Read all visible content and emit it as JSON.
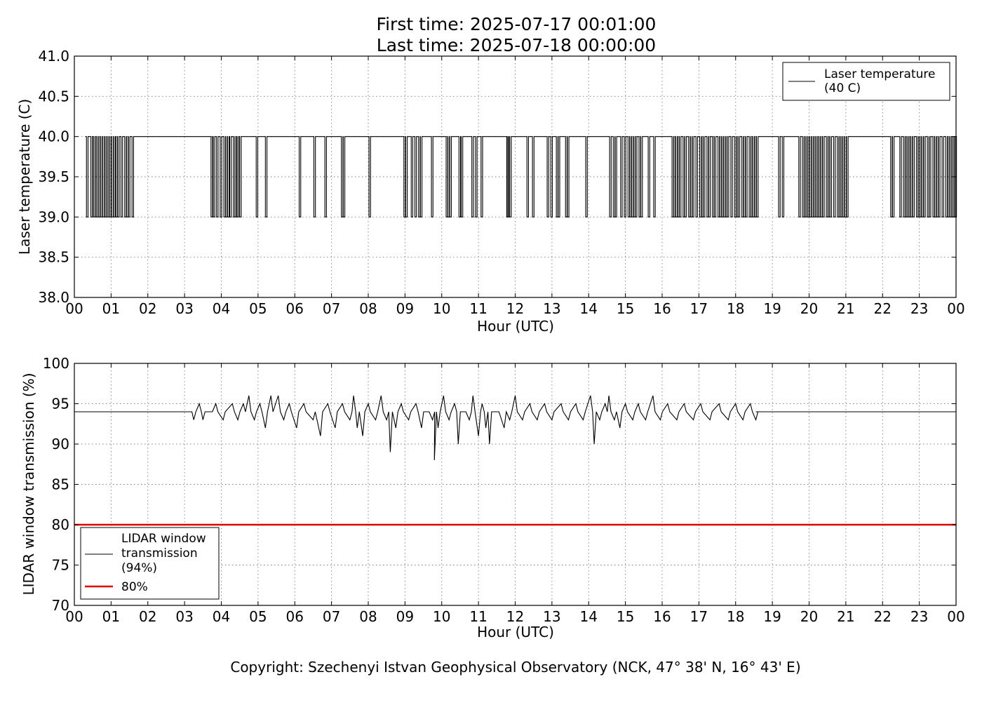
{
  "titles": {
    "first_time": "First time: 2025-07-17 00:01:00",
    "last_time": "Last time: 2025-07-18 00:00:00"
  },
  "copyright": "Copyright: Szechenyi Istvan Geophysical Observatory (NCK, 47° 38' N, 16° 43' E)",
  "chart_data": [
    {
      "type": "line",
      "xlabel": "Hour (UTC)",
      "ylabel": "Laser temperature (C)",
      "xlim": [
        0,
        24
      ],
      "ylim": [
        38.0,
        41.0
      ],
      "grid": true,
      "x_ticks": [
        "00",
        "01",
        "02",
        "03",
        "04",
        "05",
        "06",
        "07",
        "08",
        "09",
        "10",
        "11",
        "12",
        "13",
        "14",
        "15",
        "16",
        "17",
        "18",
        "19",
        "20",
        "21",
        "22",
        "23",
        "00"
      ],
      "y_ticks": [
        "38.0",
        "38.5",
        "39.0",
        "39.5",
        "40.0",
        "40.5",
        "41.0"
      ],
      "legend": {
        "position": "top-right",
        "entries": [
          "Laser temperature\n(40 C)"
        ]
      },
      "series": [
        {
          "name": "Laser temperature\n(40 C)",
          "color": "#000000",
          "baseline": 40.0,
          "low": 39.0,
          "drops": [
            0.33,
            0.45,
            0.52,
            0.57,
            0.62,
            0.67,
            0.72,
            0.77,
            0.82,
            0.87,
            0.92,
            0.97,
            1.02,
            1.07,
            1.13,
            1.18,
            1.27,
            1.37,
            1.42,
            1.47,
            1.57,
            3.72,
            3.78,
            3.87,
            3.97,
            4.07,
            4.12,
            4.17,
            4.23,
            4.33,
            4.37,
            4.43,
            4.5,
            4.95,
            5.2,
            6.12,
            6.52,
            6.82,
            7.27,
            7.32,
            8.02,
            8.97,
            9.02,
            9.17,
            9.27,
            9.37,
            9.42,
            9.72,
            10.12,
            10.17,
            10.22,
            10.47,
            10.53,
            10.82,
            10.92,
            11.07,
            11.77,
            11.8,
            11.85,
            12.32,
            12.47,
            12.87,
            12.97,
            13.12,
            13.17,
            13.37,
            13.42,
            13.92,
            14.57,
            14.67,
            14.72,
            14.87,
            14.97,
            15.07,
            15.12,
            15.17,
            15.22,
            15.27,
            15.37,
            15.42,
            15.62,
            15.77,
            16.27,
            16.32,
            16.37,
            16.42,
            16.47,
            16.57,
            16.62,
            16.72,
            16.77,
            16.82,
            16.92,
            17.02,
            17.07,
            17.12,
            17.22,
            17.27,
            17.37,
            17.42,
            17.52,
            17.57,
            17.62,
            17.67,
            17.72,
            17.77,
            17.87,
            17.97,
            18.02,
            18.07,
            18.17,
            18.22,
            18.27,
            18.37,
            18.42,
            18.47,
            18.52,
            18.57,
            19.17,
            19.27,
            19.72,
            19.82,
            19.87,
            19.92,
            19.97,
            20.02,
            20.07,
            20.12,
            20.17,
            20.22,
            20.27,
            20.32,
            20.37,
            20.47,
            20.52,
            20.57,
            20.67,
            20.77,
            20.82,
            20.87,
            20.92,
            20.97,
            21.02,
            22.22,
            22.27,
            22.47,
            22.57,
            22.62,
            22.67,
            22.72,
            22.77,
            22.82,
            22.92,
            22.97,
            23.02,
            23.07,
            23.12,
            23.22,
            23.27,
            23.37,
            23.42,
            23.47,
            23.52,
            23.62,
            23.72,
            23.77,
            23.82,
            23.87,
            23.92,
            23.97
          ]
        }
      ]
    },
    {
      "type": "line",
      "xlabel": "Hour (UTC)",
      "ylabel": "LIDAR window transmission (%)",
      "xlim": [
        0,
        24
      ],
      "ylim": [
        70,
        100
      ],
      "grid": true,
      "x_ticks": [
        "00",
        "01",
        "02",
        "03",
        "04",
        "05",
        "06",
        "07",
        "08",
        "09",
        "10",
        "11",
        "12",
        "13",
        "14",
        "15",
        "16",
        "17",
        "18",
        "19",
        "20",
        "21",
        "22",
        "23",
        "00"
      ],
      "y_ticks": [
        "70",
        "75",
        "80",
        "85",
        "90",
        "95",
        "100"
      ],
      "legend": {
        "position": "lower-left",
        "entries": [
          "LIDAR window\ntransmission\n(94%)",
          "80%"
        ]
      },
      "series": [
        {
          "name": "LIDAR window\ntransmission\n(94%)",
          "color": "#000000",
          "baseline": 94,
          "noisy_start": 3.2,
          "noisy_end": 18.55,
          "spikes": [
            [
              3.25,
              93
            ],
            [
              3.4,
              95
            ],
            [
              3.5,
              93
            ],
            [
              3.7,
              94
            ],
            [
              3.85,
              95
            ],
            [
              4.05,
              93
            ],
            [
              4.3,
              95
            ],
            [
              4.45,
              93
            ],
            [
              4.6,
              95
            ],
            [
              4.75,
              96
            ],
            [
              4.9,
              93
            ],
            [
              5.05,
              95
            ],
            [
              5.2,
              92
            ],
            [
              5.35,
              96
            ],
            [
              5.55,
              96
            ],
            [
              5.7,
              93
            ],
            [
              5.85,
              95
            ],
            [
              6.05,
              92
            ],
            [
              6.25,
              95
            ],
            [
              6.5,
              93
            ],
            [
              6.7,
              91
            ],
            [
              6.9,
              95
            ],
            [
              7.1,
              92
            ],
            [
              7.3,
              95
            ],
            [
              7.5,
              93
            ],
            [
              7.6,
              96
            ],
            [
              7.7,
              92
            ],
            [
              7.85,
              91
            ],
            [
              8.0,
              95
            ],
            [
              8.2,
              93
            ],
            [
              8.35,
              96
            ],
            [
              8.5,
              93
            ],
            [
              8.6,
              89
            ],
            [
              8.75,
              92
            ],
            [
              8.9,
              95
            ],
            [
              9.1,
              93
            ],
            [
              9.3,
              95
            ],
            [
              9.45,
              92
            ],
            [
              9.6,
              94
            ],
            [
              9.75,
              93
            ],
            [
              9.8,
              88
            ],
            [
              9.9,
              92
            ],
            [
              10.05,
              96
            ],
            [
              10.2,
              93
            ],
            [
              10.35,
              95
            ],
            [
              10.45,
              90
            ],
            [
              10.6,
              94
            ],
            [
              10.75,
              93
            ],
            [
              10.85,
              96
            ],
            [
              11.0,
              91
            ],
            [
              11.1,
              95
            ],
            [
              11.2,
              92
            ],
            [
              11.3,
              90
            ],
            [
              11.5,
              94
            ],
            [
              11.7,
              92
            ],
            [
              11.85,
              93
            ],
            [
              12.0,
              96
            ],
            [
              12.2,
              93
            ],
            [
              12.4,
              95
            ],
            [
              12.6,
              93
            ],
            [
              12.8,
              95
            ],
            [
              13.0,
              93
            ],
            [
              13.25,
              95
            ],
            [
              13.45,
              93
            ],
            [
              13.65,
              95
            ],
            [
              13.85,
              93
            ],
            [
              14.05,
              96
            ],
            [
              14.15,
              90
            ],
            [
              14.3,
              93
            ],
            [
              14.45,
              95
            ],
            [
              14.55,
              96
            ],
            [
              14.7,
              93
            ],
            [
              14.85,
              92
            ],
            [
              15.0,
              95
            ],
            [
              15.2,
              93
            ],
            [
              15.35,
              95
            ],
            [
              15.55,
              93
            ],
            [
              15.75,
              96
            ],
            [
              15.95,
              93
            ],
            [
              16.15,
              95
            ],
            [
              16.4,
              93
            ],
            [
              16.6,
              95
            ],
            [
              16.85,
              93
            ],
            [
              17.05,
              95
            ],
            [
              17.3,
              93
            ],
            [
              17.55,
              95
            ],
            [
              17.8,
              93
            ],
            [
              18.0,
              95
            ],
            [
              18.2,
              93
            ],
            [
              18.4,
              95
            ],
            [
              18.55,
              93
            ]
          ]
        },
        {
          "name": "80%",
          "color": "#e00000",
          "constant": 80
        }
      ]
    }
  ]
}
